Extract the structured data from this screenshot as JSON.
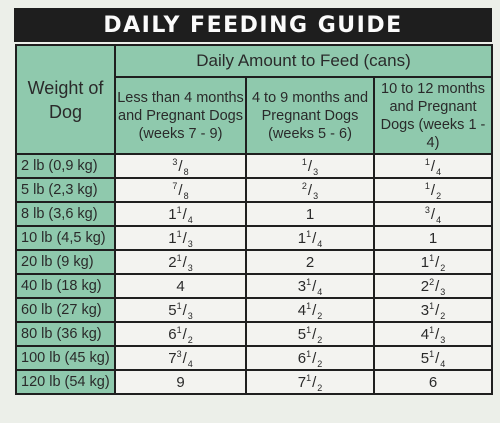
{
  "title": "DAILY FEEDING GUIDE",
  "header": {
    "weight_label": "Weight of Dog",
    "daily_amount": "Daily Amount to Feed (cans)",
    "columns": [
      "Less than 4 months and Pregnant Dogs (weeks 7 - 9)",
      "4 to 9 months and Pregnant Dogs (weeks 5 - 6)",
      "10 to 12 months and Pregnant Dogs (weeks 1 - 4)"
    ]
  },
  "rows": [
    {
      "weight": "2 lb (0,9 kg)",
      "amounts": [
        "3/8",
        "1/3",
        "1/4"
      ]
    },
    {
      "weight": "5 lb (2,3 kg)",
      "amounts": [
        "7/8",
        "2/3",
        "1/2"
      ]
    },
    {
      "weight": "8 lb (3,6 kg)",
      "amounts": [
        "1 1/4",
        "1",
        "3/4"
      ]
    },
    {
      "weight": "10 lb (4,5 kg)",
      "amounts": [
        "1 1/3",
        "1 1/4",
        "1"
      ]
    },
    {
      "weight": "20 lb (9 kg)",
      "amounts": [
        "2 1/3",
        "2",
        "1 1/2"
      ]
    },
    {
      "weight": "40 lb (18 kg)",
      "amounts": [
        "4",
        "3 1/4",
        "2 2/3"
      ]
    },
    {
      "weight": "60 lb (27 kg)",
      "amounts": [
        "5 1/3",
        "4 1/2",
        "3 1/2"
      ]
    },
    {
      "weight": "80 lb (36 kg)",
      "amounts": [
        "6 1/2",
        "5 1/2",
        "4 1/3"
      ]
    },
    {
      "weight": "100 lb (45 kg)",
      "amounts": [
        "7 3/4",
        "6 1/2",
        "5 1/4"
      ]
    },
    {
      "weight": "120 lb (54 kg)",
      "amounts": [
        "9",
        "7 1/2",
        "6"
      ]
    }
  ]
}
